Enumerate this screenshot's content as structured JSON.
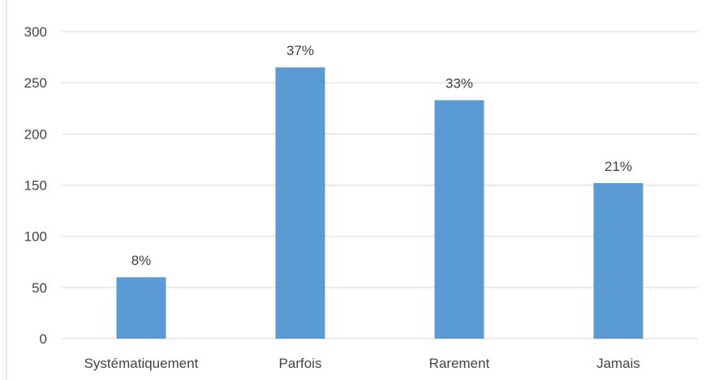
{
  "chart_data": {
    "type": "bar",
    "categories": [
      "Systématiquement",
      "Parfois",
      "Rarement",
      "Jamais"
    ],
    "values": [
      60,
      265,
      233,
      152
    ],
    "data_labels": [
      "8%",
      "37%",
      "33%",
      "21%"
    ],
    "title": "",
    "xlabel": "",
    "ylabel": "",
    "ylim": [
      0,
      300
    ],
    "yticks": [
      0,
      50,
      100,
      150,
      200,
      250,
      300
    ],
    "grid": true,
    "legend": "none",
    "bar_color": "#5b9bd5",
    "grid_color": "#d9d9d9"
  }
}
